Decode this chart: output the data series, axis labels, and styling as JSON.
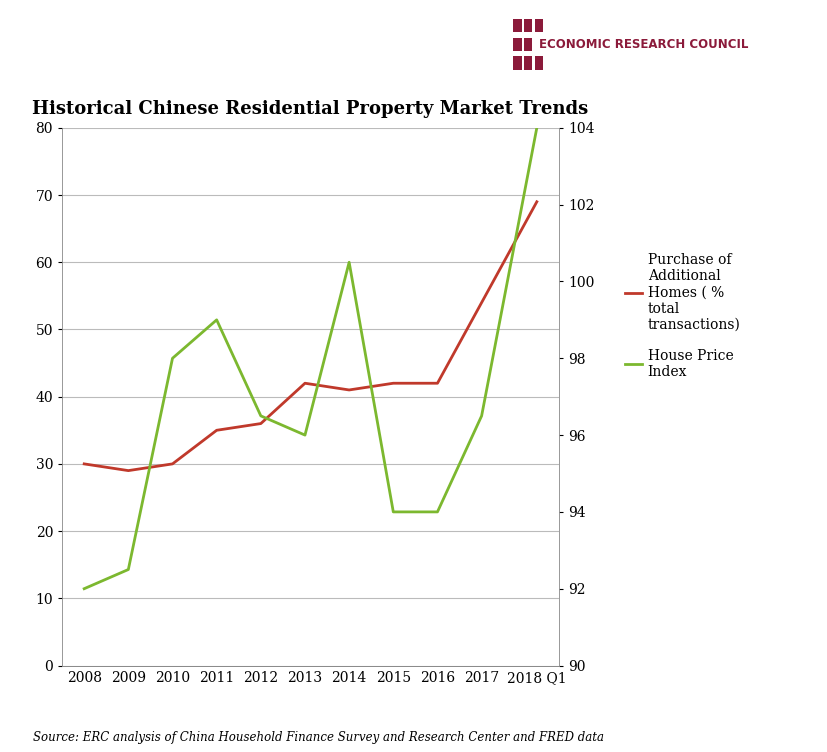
{
  "title": "Historical Chinese Residential Property Market Trends",
  "source_text": "Source: ERC analysis of China Household Finance Survey and Research Center and FRED data",
  "erc_text": "ECONOMIC RESEARCH COUNCIL",
  "x_labels": [
    "2008",
    "2009",
    "2010",
    "2011",
    "2012",
    "2013",
    "2014",
    "2015",
    "2016",
    "2017",
    "2018 Q1"
  ],
  "x_values": [
    2008,
    2009,
    2010,
    2011,
    2012,
    2013,
    2014,
    2015,
    2016,
    2017,
    2018.25
  ],
  "red_values": [
    30,
    29,
    30,
    35,
    36,
    42,
    41,
    42,
    42,
    54,
    69
  ],
  "green_values": [
    92.0,
    92.5,
    98.0,
    99.0,
    96.5,
    96.0,
    100.5,
    94.0,
    94.0,
    96.5,
    104.0
  ],
  "left_ylim": [
    0,
    80
  ],
  "right_ylim": [
    90,
    104
  ],
  "left_yticks": [
    0,
    10,
    20,
    30,
    40,
    50,
    60,
    70,
    80
  ],
  "right_yticks": [
    90,
    92,
    94,
    96,
    98,
    100,
    102,
    104
  ],
  "red_color": "#c0392b",
  "green_color": "#7cb82f",
  "erc_color": "#8b1a3a",
  "background_color": "#ffffff",
  "grid_color": "#bbbbbb",
  "legend_red_label": "Purchase of\nAdditional\nHomes ( %\ntotal\ntransactions)",
  "legend_green_label": "House Price\nIndex",
  "erc_logo_squares": [
    [
      1,
      1,
      0,
      1,
      1,
      0,
      0,
      0
    ],
    [
      1,
      1,
      0,
      1,
      1,
      0,
      0,
      0
    ],
    [
      0,
      0,
      0,
      0,
      0,
      0,
      0,
      0
    ],
    [
      1,
      1,
      0,
      1,
      1,
      0,
      0,
      0
    ],
    [
      1,
      1,
      0,
      1,
      1,
      0,
      0,
      0
    ]
  ]
}
